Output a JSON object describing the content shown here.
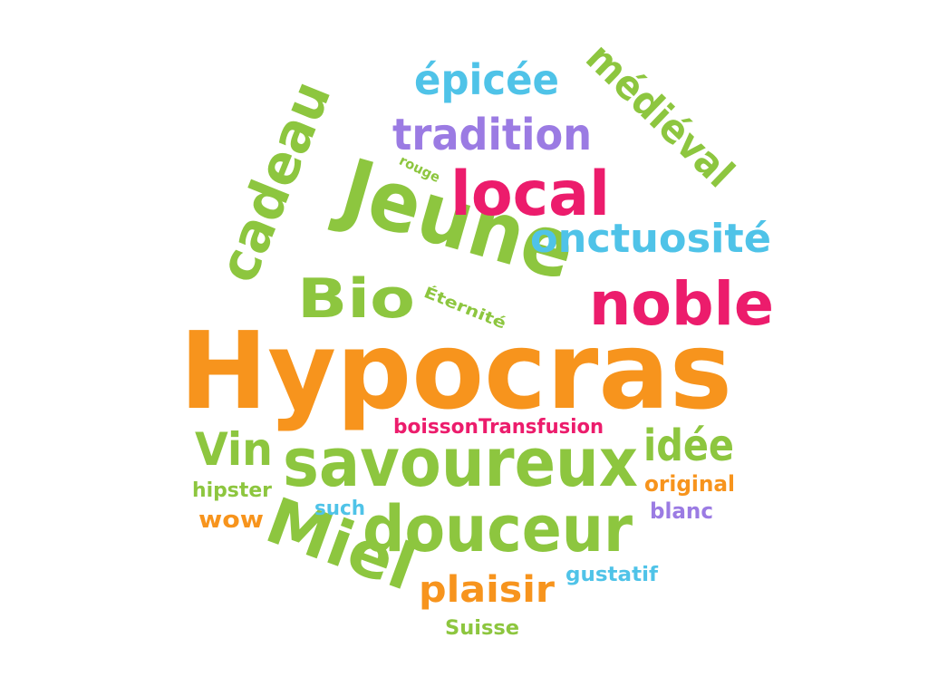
{
  "colors": {
    "orange": "#f7941d",
    "green": "#8dc63f",
    "pink": "#ec1c6c",
    "cyan": "#4fc3e8",
    "purple": "#9b7be3"
  },
  "words": [
    {
      "id": "hypocras",
      "text": "Hypocras",
      "color": "orange"
    },
    {
      "id": "jeune",
      "text": "Jeune",
      "color": "green"
    },
    {
      "id": "savoureux",
      "text": "savoureux",
      "color": "green"
    },
    {
      "id": "douceur",
      "text": "douceur",
      "color": "green"
    },
    {
      "id": "miel",
      "text": "Miel",
      "color": "green"
    },
    {
      "id": "noble",
      "text": "noble",
      "color": "pink"
    },
    {
      "id": "local",
      "text": "local",
      "color": "pink"
    },
    {
      "id": "cadeau",
      "text": "cadeau",
      "color": "green"
    },
    {
      "id": "bio",
      "text": "Bio",
      "color": "green"
    },
    {
      "id": "tradition",
      "text": "tradition",
      "color": "purple"
    },
    {
      "id": "medieval",
      "text": "médiéval",
      "color": "green"
    },
    {
      "id": "epicee",
      "text": "épicée",
      "color": "cyan"
    },
    {
      "id": "onctuosite",
      "text": "onctuosité",
      "color": "cyan"
    },
    {
      "id": "vin",
      "text": "Vin",
      "color": "green"
    },
    {
      "id": "idee",
      "text": "idée",
      "color": "green"
    },
    {
      "id": "plaisir",
      "text": "plaisir",
      "color": "orange"
    },
    {
      "id": "boisson",
      "text": "boisson",
      "color": "pink"
    },
    {
      "id": "transfusion",
      "text": "Transfusion",
      "color": "pink"
    },
    {
      "id": "original",
      "text": "original",
      "color": "orange"
    },
    {
      "id": "blanc",
      "text": "blanc",
      "color": "purple"
    },
    {
      "id": "hipster",
      "text": "hipster",
      "color": "green"
    },
    {
      "id": "wow",
      "text": "wow",
      "color": "orange"
    },
    {
      "id": "such",
      "text": "such",
      "color": "cyan"
    },
    {
      "id": "gustatif",
      "text": "gustatif",
      "color": "cyan"
    },
    {
      "id": "suisse",
      "text": "Suisse",
      "color": "green"
    },
    {
      "id": "eternite",
      "text": "Éternité",
      "color": "green"
    },
    {
      "id": "rouge",
      "text": "rouge",
      "color": "green"
    }
  ]
}
